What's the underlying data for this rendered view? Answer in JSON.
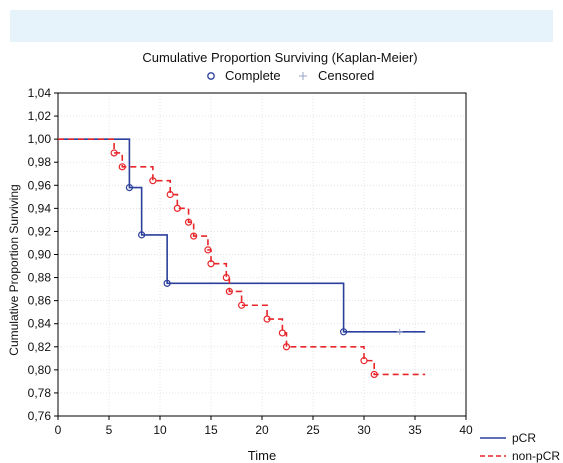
{
  "chart_data": {
    "type": "line",
    "title": "Cumulative Proportion Surviving (Kaplan-Meier)",
    "xlabel": "Time",
    "ylabel": "Cumulative Proportion Surviving",
    "xlim": [
      0,
      40
    ],
    "ylim": [
      0.76,
      1.04
    ],
    "xticks": [
      0,
      5,
      10,
      15,
      20,
      25,
      30,
      35,
      40
    ],
    "xtick_labels": [
      "0",
      "5",
      "10",
      "15",
      "20",
      "25",
      "30",
      "35",
      "40"
    ],
    "yticks": [
      0.76,
      0.78,
      0.8,
      0.82,
      0.84,
      0.86,
      0.88,
      0.9,
      0.92,
      0.94,
      0.96,
      0.98,
      1.0,
      1.02,
      1.04
    ],
    "ytick_labels": [
      "0,76",
      "0,78",
      "0,80",
      "0,82",
      "0,84",
      "0,86",
      "0,88",
      "0,90",
      "0,92",
      "0,94",
      "0,96",
      "0,98",
      "1,00",
      "1,02",
      "1,04"
    ],
    "grid": true,
    "top_legend": {
      "complete_label": "Complete",
      "censored_label": "Censored"
    },
    "series": [
      {
        "name": "pCR",
        "color": "#2b3f9c",
        "dash": "solid",
        "steps": [
          [
            0,
            1.0
          ],
          [
            7,
            0.958
          ],
          [
            8.2,
            0.917
          ],
          [
            10.7,
            0.875
          ],
          [
            28,
            0.833
          ]
        ],
        "end_x": 36,
        "complete_points": [
          [
            7,
            0.958
          ],
          [
            8.2,
            0.917
          ],
          [
            10.7,
            0.875
          ],
          [
            28,
            0.833
          ]
        ],
        "censored_points": [
          [
            33.5,
            0.833
          ]
        ]
      },
      {
        "name": "non-pCR",
        "color": "#e8262a",
        "dash": "dashed",
        "steps": [
          [
            0,
            1.0
          ],
          [
            5.5,
            0.988
          ],
          [
            6.3,
            0.976
          ],
          [
            9.3,
            0.964
          ],
          [
            11,
            0.952
          ],
          [
            11.7,
            0.94
          ],
          [
            12.8,
            0.928
          ],
          [
            13.3,
            0.916
          ],
          [
            14.7,
            0.904
          ],
          [
            15,
            0.892
          ],
          [
            16.5,
            0.88
          ],
          [
            16.8,
            0.868
          ],
          [
            18,
            0.856
          ],
          [
            20.5,
            0.844
          ],
          [
            22,
            0.832
          ],
          [
            22.4,
            0.82
          ],
          [
            30,
            0.808
          ],
          [
            31,
            0.796
          ]
        ],
        "end_x": 36,
        "complete_points": [
          [
            5.5,
            0.988
          ],
          [
            6.3,
            0.976
          ],
          [
            9.3,
            0.964
          ],
          [
            11,
            0.952
          ],
          [
            11.7,
            0.94
          ],
          [
            12.8,
            0.928
          ],
          [
            13.3,
            0.916
          ],
          [
            14.7,
            0.904
          ],
          [
            15,
            0.892
          ],
          [
            16.5,
            0.88
          ],
          [
            16.8,
            0.868
          ],
          [
            18,
            0.856
          ],
          [
            20.5,
            0.844
          ],
          [
            22,
            0.832
          ],
          [
            22.4,
            0.82
          ],
          [
            30,
            0.808
          ],
          [
            31,
            0.796
          ]
        ],
        "censored_points": []
      }
    ]
  }
}
